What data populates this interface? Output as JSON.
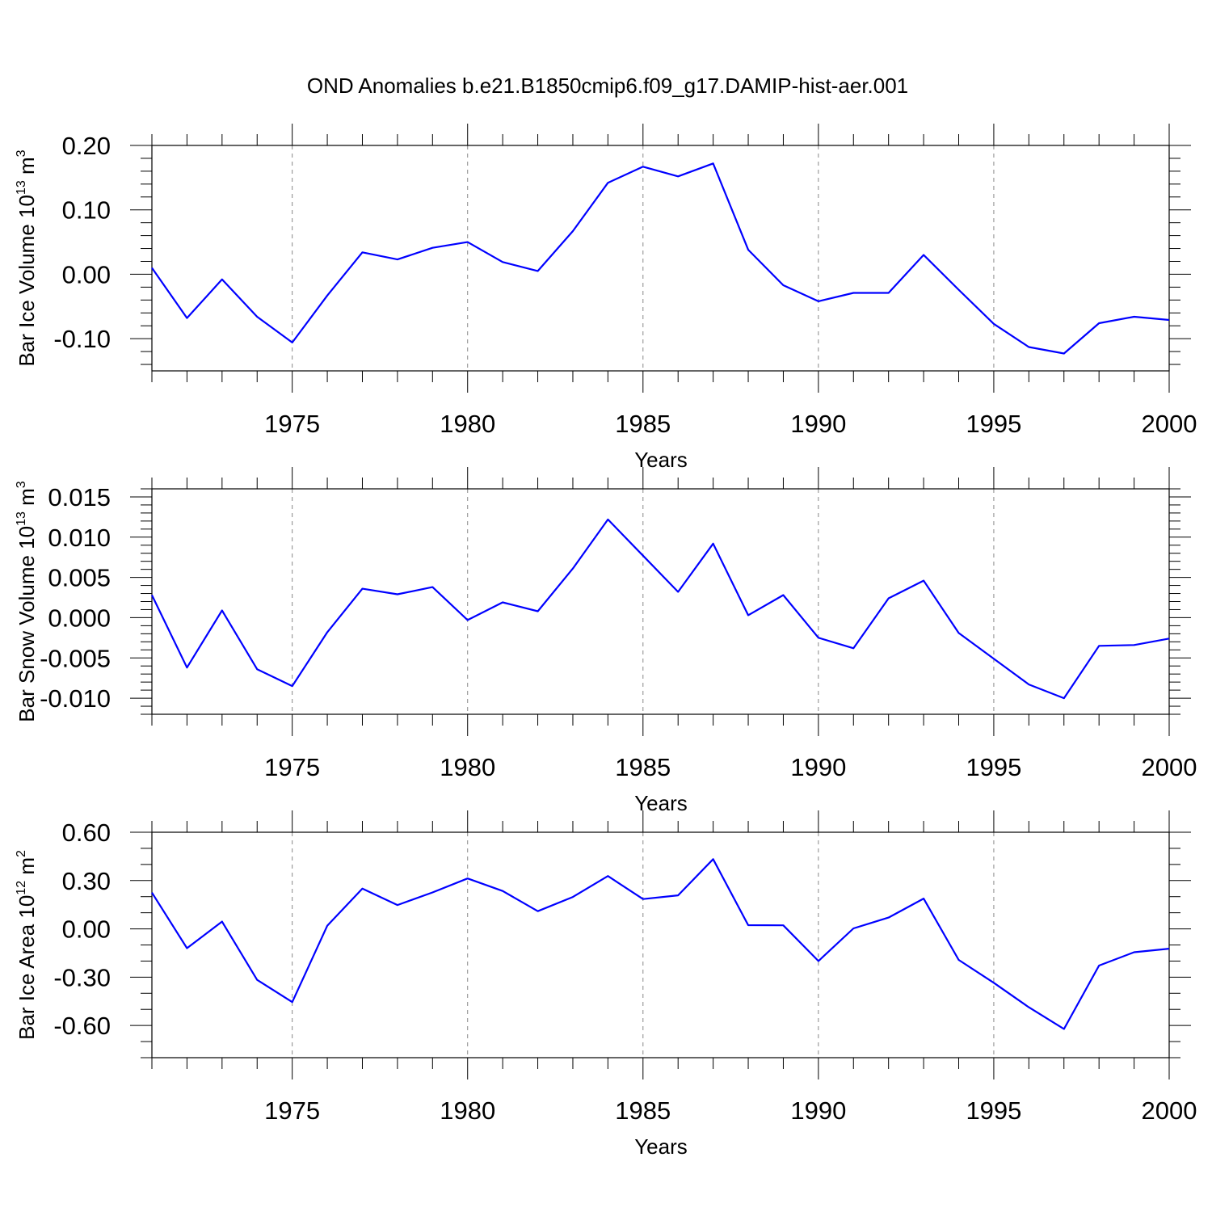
{
  "title": "OND Anomalies b.e21.B1850cmip6.f09_g17.DAMIP-hist-aer.001",
  "chart_data": [
    {
      "type": "line",
      "ylabel": {
        "text": "Bar Ice Volume 10",
        "exp": "13",
        "unit": " m",
        "unit_exp": "3"
      },
      "xlabel": "Years",
      "xlim": [
        1971,
        2000
      ],
      "ylim": [
        -0.15,
        0.2
      ],
      "y_major_ticks": [
        -0.1,
        0.0,
        0.1,
        0.2
      ],
      "y_tick_labels": [
        "-0.10",
        "0.00",
        "0.10",
        "0.20"
      ],
      "y_minor_step": 0.02,
      "x_tick_labels": [
        "1975",
        "1980",
        "1985",
        "1990",
        "1995",
        "2000"
      ],
      "x_major_ticks": [
        1975,
        1980,
        1985,
        1990,
        1995,
        2000
      ],
      "line_color": "#0000ff",
      "series": [
        {
          "x": [
            1971,
            1972,
            1973,
            1974,
            1975,
            1976,
            1977,
            1978,
            1979,
            1980,
            1981,
            1982,
            1983,
            1984,
            1985,
            1986,
            1987,
            1988,
            1989,
            1990,
            1991,
            1992,
            1993,
            1994,
            1995,
            1996,
            1997,
            1998,
            1999,
            2000
          ],
          "values": [
            0.01,
            -0.068,
            -0.008,
            -0.066,
            -0.106,
            -0.033,
            0.034,
            0.023,
            0.041,
            0.05,
            0.019,
            0.005,
            0.067,
            0.142,
            0.167,
            0.152,
            0.172,
            0.038,
            -0.017,
            -0.042,
            -0.029,
            -0.029,
            0.03,
            -0.024,
            -0.077,
            -0.113,
            -0.123,
            -0.076,
            -0.066,
            -0.071
          ]
        }
      ]
    },
    {
      "type": "line",
      "ylabel": {
        "text": "Bar Snow Volume 10",
        "exp": "13",
        "unit": " m",
        "unit_exp": "3"
      },
      "xlabel": "Years",
      "xlim": [
        1971,
        2000
      ],
      "ylim": [
        -0.012,
        0.016
      ],
      "y_major_ticks": [
        -0.01,
        -0.005,
        0.0,
        0.005,
        0.01,
        0.015
      ],
      "y_tick_labels": [
        "-0.010",
        "-0.005",
        "0.000",
        "0.005",
        "0.010",
        "0.015"
      ],
      "y_minor_step": 0.001,
      "x_tick_labels": [
        "1975",
        "1980",
        "1985",
        "1990",
        "1995",
        "2000"
      ],
      "x_major_ticks": [
        1975,
        1980,
        1985,
        1990,
        1995,
        2000
      ],
      "line_color": "#0000ff",
      "series": [
        {
          "x": [
            1971,
            1972,
            1973,
            1974,
            1975,
            1976,
            1977,
            1978,
            1979,
            1980,
            1981,
            1982,
            1983,
            1984,
            1985,
            1986,
            1987,
            1988,
            1989,
            1990,
            1991,
            1992,
            1993,
            1994,
            1995,
            1996,
            1997,
            1998,
            1999,
            2000
          ],
          "values": [
            0.0028,
            -0.0062,
            0.0009,
            -0.0064,
            -0.0085,
            -0.0018,
            0.0036,
            0.0029,
            0.0038,
            -0.0003,
            0.0019,
            0.0008,
            0.0061,
            0.0122,
            0.0077,
            0.0032,
            0.0092,
            0.0003,
            0.0028,
            -0.0025,
            -0.0038,
            0.0024,
            0.0046,
            -0.0019,
            -0.0051,
            -0.0083,
            -0.01,
            -0.0035,
            -0.0034,
            -0.0026
          ]
        }
      ]
    },
    {
      "type": "line",
      "ylabel": {
        "text": "Bar Ice Area 10",
        "exp": "12",
        "unit": " m",
        "unit_exp": "2"
      },
      "xlabel": "Years",
      "xlim": [
        1971,
        2000
      ],
      "ylim": [
        -0.8,
        0.6
      ],
      "y_major_ticks": [
        -0.6,
        -0.3,
        0.0,
        0.3,
        0.6
      ],
      "y_tick_labels": [
        "-0.60",
        "-0.30",
        "0.00",
        "0.30",
        "0.60"
      ],
      "y_minor_step": 0.1,
      "x_tick_labels": [
        "1975",
        "1980",
        "1985",
        "1990",
        "1995",
        "2000"
      ],
      "x_major_ticks": [
        1975,
        1980,
        1985,
        1990,
        1995,
        2000
      ],
      "line_color": "#0000ff",
      "series": [
        {
          "x": [
            1971,
            1972,
            1973,
            1974,
            1975,
            1976,
            1977,
            1978,
            1979,
            1980,
            1981,
            1982,
            1983,
            1984,
            1985,
            1986,
            1987,
            1988,
            1989,
            1990,
            1991,
            1992,
            1993,
            1994,
            1995,
            1996,
            1997,
            1998,
            1999,
            2000
          ],
          "values": [
            0.225,
            -0.12,
            0.045,
            -0.317,
            -0.455,
            0.02,
            0.25,
            0.148,
            0.226,
            0.313,
            0.235,
            0.11,
            0.198,
            0.328,
            0.185,
            0.208,
            0.433,
            0.023,
            0.022,
            -0.2,
            0.003,
            0.07,
            0.188,
            -0.193,
            -0.335,
            -0.487,
            -0.622,
            -0.228,
            -0.145,
            -0.123
          ]
        }
      ]
    }
  ]
}
